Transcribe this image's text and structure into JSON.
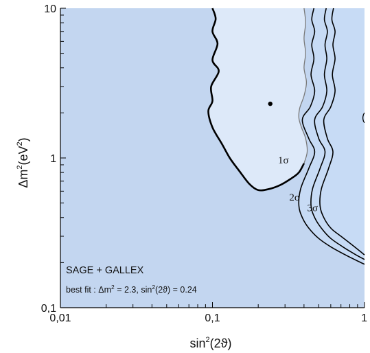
{
  "chart_data": {
    "type": "contour",
    "xscale": "log",
    "yscale": "log",
    "xlim": [
      0.01,
      1
    ],
    "ylim": [
      0.1,
      10
    ],
    "x_ticks": [
      {
        "value": 0.01,
        "label": "0,01"
      },
      {
        "value": 0.1,
        "label": "0,1"
      },
      {
        "value": 1,
        "label": "1"
      }
    ],
    "y_ticks": [
      {
        "value": 0.1,
        "label": "0,1"
      },
      {
        "value": 1,
        "label": "1"
      },
      {
        "value": 10,
        "label": "10"
      }
    ],
    "xlabel": {
      "base": "sin",
      "sup": "2",
      "rest": "(2ϑ)"
    },
    "ylabel": {
      "base": "Δm",
      "sup1": "2",
      "mid": "(eV",
      "sup2": "2",
      "end": ")"
    },
    "annotations": {
      "title": "SAGE + GALLEX",
      "best_fit_prefix": "best fit : Δm",
      "best_fit_sup1": "2",
      "best_fit_mid": " = 2.3, sin",
      "best_fit_sup2": "2",
      "best_fit_end": "(2ϑ) = 0.24"
    },
    "best_fit": {
      "x": 0.24,
      "y": 2.3
    },
    "colors": {
      "excluded": "#c3d6f0",
      "region_1sigma": "#dde9f9",
      "region_2sigma": "#c7dbf5",
      "region_3sigma": "#a9c4ea",
      "outside": "#ffffff",
      "boundary": "#000000",
      "sigma1_boundary": "#7a7a7a"
    },
    "contours": [
      {
        "label": "1σ",
        "label_at": {
          "x": 0.27,
          "y": 0.92
        },
        "points": [
          [
            0.1,
            10
          ],
          [
            0.105,
            8.5
          ],
          [
            0.1,
            7
          ],
          [
            0.108,
            5.8
          ],
          [
            0.1,
            4.5
          ],
          [
            0.11,
            3.8
          ],
          [
            0.098,
            3
          ],
          [
            0.1,
            2.4
          ],
          [
            0.094,
            2.05
          ],
          [
            0.1,
            1.6
          ],
          [
            0.115,
            1.25
          ],
          [
            0.13,
            1.0
          ],
          [
            0.15,
            0.82
          ],
          [
            0.175,
            0.67
          ],
          [
            0.2,
            0.61
          ],
          [
            0.235,
            0.62
          ],
          [
            0.28,
            0.66
          ],
          [
            0.33,
            0.73
          ],
          [
            0.37,
            0.8
          ],
          [
            0.4,
            0.92
          ],
          [
            0.42,
            1.1
          ],
          [
            0.41,
            1.35
          ],
          [
            0.385,
            1.6
          ],
          [
            0.37,
            1.85
          ],
          [
            0.375,
            2.15
          ],
          [
            0.4,
            2.6
          ],
          [
            0.415,
            3.2
          ],
          [
            0.4,
            4.0
          ],
          [
            0.41,
            5.0
          ],
          [
            0.4,
            6.3
          ],
          [
            0.41,
            8
          ],
          [
            0.4,
            10
          ]
        ]
      },
      {
        "label": "2σ",
        "label_at": {
          "x": 0.32,
          "y": 0.52
        },
        "points": [
          [
            0.465,
            10
          ],
          [
            0.45,
            8.4
          ],
          [
            0.47,
            7
          ],
          [
            0.45,
            5.7
          ],
          [
            0.465,
            4.6
          ],
          [
            0.445,
            3.6
          ],
          [
            0.47,
            2.8
          ],
          [
            0.44,
            2.2
          ],
          [
            0.39,
            1.8
          ],
          [
            0.43,
            1.35
          ],
          [
            0.47,
            1.1
          ],
          [
            0.43,
            0.85
          ],
          [
            0.38,
            0.62
          ],
          [
            0.37,
            0.48
          ],
          [
            0.39,
            0.4
          ],
          [
            0.43,
            0.34
          ],
          [
            0.5,
            0.29
          ],
          [
            0.6,
            0.255
          ],
          [
            0.75,
            0.225
          ],
          [
            0.9,
            0.205
          ],
          [
            1,
            0.195
          ]
        ]
      },
      {
        "label": "3σ",
        "label_at": {
          "x": 0.42,
          "y": 0.44
        },
        "points": [
          [
            0.56,
            10
          ],
          [
            0.545,
            8.4
          ],
          [
            0.57,
            7
          ],
          [
            0.55,
            5.7
          ],
          [
            0.565,
            4.6
          ],
          [
            0.545,
            3.6
          ],
          [
            0.565,
            2.8
          ],
          [
            0.53,
            2.2
          ],
          [
            0.47,
            1.8
          ],
          [
            0.5,
            1.35
          ],
          [
            0.55,
            1.1
          ],
          [
            0.51,
            0.85
          ],
          [
            0.455,
            0.62
          ],
          [
            0.445,
            0.48
          ],
          [
            0.47,
            0.4
          ],
          [
            0.52,
            0.34
          ],
          [
            0.6,
            0.29
          ],
          [
            0.72,
            0.255
          ],
          [
            0.88,
            0.225
          ],
          [
            1,
            0.21
          ]
        ]
      },
      {
        "label": "",
        "points": [
          [
            0.625,
            10
          ],
          [
            0.61,
            8.4
          ],
          [
            0.64,
            7
          ],
          [
            0.62,
            5.7
          ],
          [
            0.64,
            4.6
          ],
          [
            0.615,
            3.6
          ],
          [
            0.64,
            2.8
          ],
          [
            0.6,
            2.2
          ],
          [
            0.54,
            1.8
          ],
          [
            0.57,
            1.35
          ],
          [
            0.62,
            1.1
          ],
          [
            0.58,
            0.85
          ],
          [
            0.52,
            0.62
          ],
          [
            0.51,
            0.48
          ],
          [
            0.54,
            0.4
          ],
          [
            0.6,
            0.34
          ],
          [
            0.7,
            0.3
          ],
          [
            0.82,
            0.265
          ],
          [
            0.95,
            0.235
          ],
          [
            1,
            0.225
          ]
        ]
      }
    ],
    "edge_feature": {
      "points": [
        [
          1,
          2.0
        ],
        [
          0.985,
          1.95
        ],
        [
          0.975,
          1.85
        ],
        [
          0.985,
          1.76
        ],
        [
          1,
          1.72
        ]
      ]
    }
  }
}
